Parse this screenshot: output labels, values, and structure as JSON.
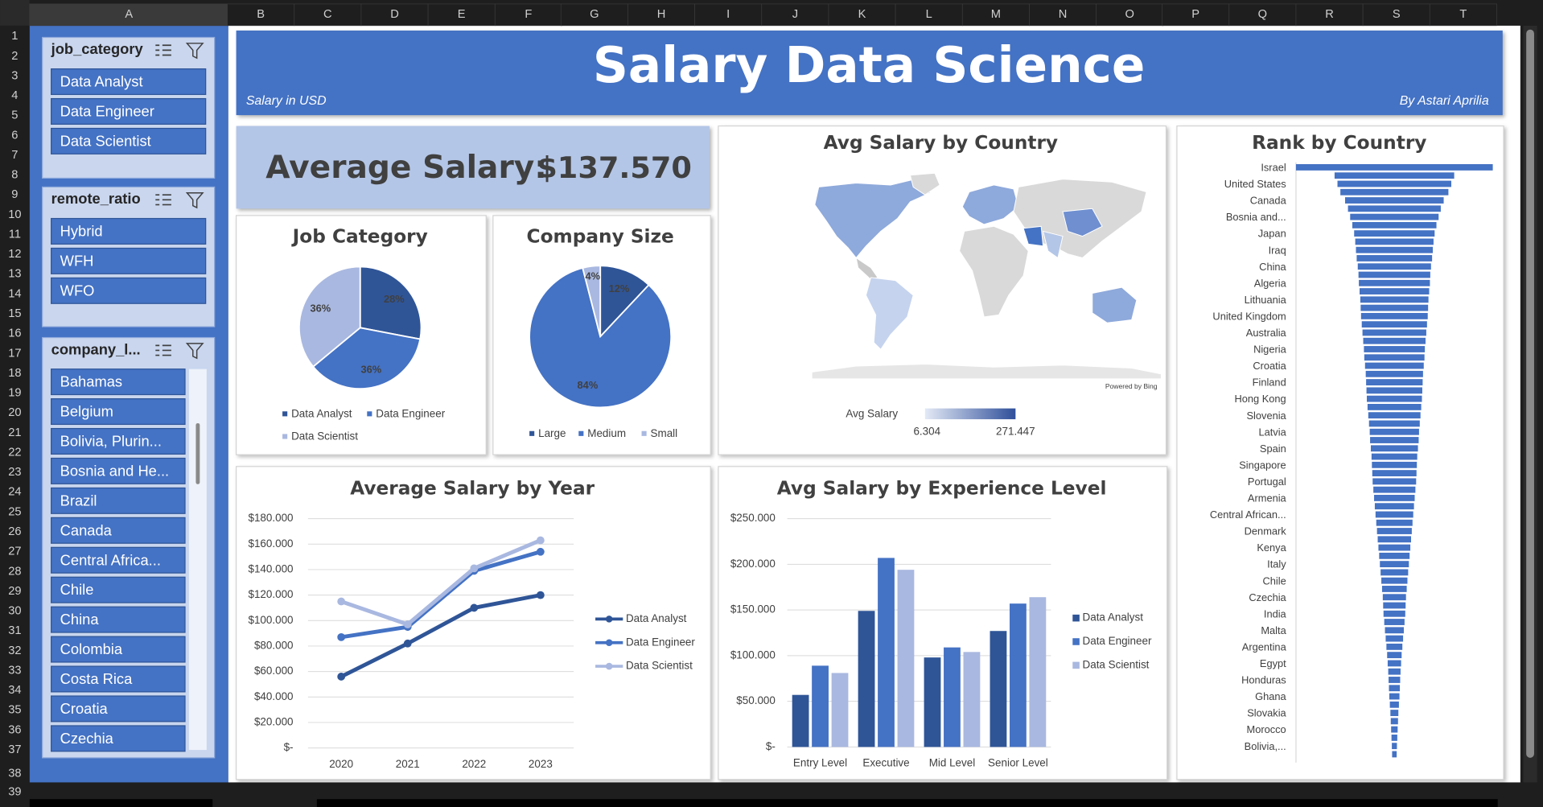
{
  "spreadsheet": {
    "columns": [
      "A",
      "B",
      "C",
      "D",
      "E",
      "F",
      "G",
      "H",
      "I",
      "J",
      "K",
      "L",
      "M",
      "N",
      "O",
      "P",
      "Q",
      "R",
      "S",
      "T"
    ],
    "rows": [
      1,
      2,
      3,
      4,
      5,
      6,
      7,
      8,
      9,
      10,
      11,
      12,
      13,
      14,
      15,
      16,
      17,
      18,
      19,
      20,
      21,
      22,
      23,
      24,
      25,
      26,
      27,
      28,
      29,
      30,
      31,
      32,
      33,
      34,
      35,
      36,
      37,
      38,
      39
    ]
  },
  "header": {
    "title": "Salary Data Science",
    "subtitle": "Salary in USD",
    "author": "By Astari Aprilia"
  },
  "kpi": {
    "label": "Average Salary:",
    "value": "$137.570"
  },
  "slicers": [
    {
      "title": "job_category",
      "items": [
        "Data Analyst",
        "Data Engineer",
        "Data Scientist"
      ]
    },
    {
      "title": "remote_ratio",
      "items": [
        "Hybrid",
        "WFH",
        "WFO"
      ]
    },
    {
      "title": "company_l...",
      "items": [
        "Bahamas",
        "Belgium",
        "Bolivia, Plurin...",
        "Bosnia and He...",
        "Brazil",
        "Canada",
        "Central Africa...",
        "Chile",
        "China",
        "Colombia",
        "Costa Rica",
        "Croatia",
        "Czechia"
      ]
    }
  ],
  "chart_data": [
    {
      "type": "pie",
      "title": "Job Category",
      "categories": [
        "Data Analyst",
        "Data Engineer",
        "Data Scientist"
      ],
      "values": [
        28,
        36,
        36
      ],
      "value_labels": [
        "28%",
        "36%",
        "36%"
      ],
      "colors": [
        "#2f5597",
        "#4472c4",
        "#a9b8e0"
      ]
    },
    {
      "type": "pie",
      "title": "Company Size",
      "categories": [
        "Large",
        "Medium",
        "Small"
      ],
      "values": [
        12,
        84,
        4
      ],
      "value_labels": [
        "12%",
        "84%",
        "4%"
      ],
      "colors": [
        "#2f5597",
        "#4472c4",
        "#a9b8e0"
      ]
    },
    {
      "type": "map",
      "title": "Avg Salary by Country",
      "legend_title": "Avg Salary",
      "color_min": {
        "value": 6304,
        "label": "6.304"
      },
      "color_max": {
        "value": 271447,
        "label": "271.447"
      },
      "colors": [
        "#e3e9f6",
        "#2f4f9a"
      ],
      "credit": "Powered by Bing"
    },
    {
      "type": "line",
      "title": "Average Salary by Year",
      "categories": [
        "2020",
        "2021",
        "2022",
        "2023"
      ],
      "series": [
        {
          "name": "Data Analyst",
          "color": "#2f5597",
          "values": [
            56000,
            82000,
            110000,
            120000
          ]
        },
        {
          "name": "Data Engineer",
          "color": "#4472c4",
          "values": [
            87000,
            95000,
            139000,
            154000
          ]
        },
        {
          "name": "Data Scientist",
          "color": "#a9b8e0",
          "values": [
            115000,
            97000,
            141000,
            163000
          ]
        }
      ],
      "ylim": [
        0,
        180000
      ],
      "yticks": [
        {
          "value": 0,
          "label": "$-"
        },
        {
          "value": 20000,
          "label": "$20.000"
        },
        {
          "value": 40000,
          "label": "$40.000"
        },
        {
          "value": 60000,
          "label": "$60.000"
        },
        {
          "value": 80000,
          "label": "$80.000"
        },
        {
          "value": 100000,
          "label": "$100.000"
        },
        {
          "value": 120000,
          "label": "$120.000"
        },
        {
          "value": 140000,
          "label": "$140.000"
        },
        {
          "value": 160000,
          "label": "$160.000"
        },
        {
          "value": 180000,
          "label": "$180.000"
        }
      ],
      "grid": true,
      "legend": "right"
    },
    {
      "type": "bar",
      "title": "Avg Salary by Experience Level",
      "categories": [
        "Entry Level",
        "Executive",
        "Mid Level",
        "Senior Level"
      ],
      "series": [
        {
          "name": "Data Analyst",
          "color": "#2f5597",
          "values": [
            57000,
            149000,
            98000,
            127000
          ]
        },
        {
          "name": "Data Engineer",
          "color": "#4472c4",
          "values": [
            89000,
            207000,
            109000,
            157000
          ]
        },
        {
          "name": "Data Scientist",
          "color": "#a9b8e0",
          "values": [
            81000,
            194000,
            104000,
            164000
          ]
        }
      ],
      "ylim": [
        0,
        250000
      ],
      "yticks": [
        {
          "value": 0,
          "label": "$-"
        },
        {
          "value": 50000,
          "label": "$50.000"
        },
        {
          "value": 100000,
          "label": "$100.000"
        },
        {
          "value": 150000,
          "label": "$150.000"
        },
        {
          "value": 200000,
          "label": "$200.000"
        },
        {
          "value": 250000,
          "label": "$250.000"
        }
      ],
      "grid": true,
      "legend": "right"
    },
    {
      "type": "funnel",
      "title": "Rank by Country",
      "color": "#4472c4",
      "categories": [
        "Israel",
        null,
        "United States",
        null,
        "Canada",
        null,
        "Bosnia and...",
        null,
        "Japan",
        null,
        "Iraq",
        null,
        "China",
        null,
        "Algeria",
        null,
        "Lithuania",
        null,
        "United Kingdom",
        null,
        "Australia",
        null,
        "Nigeria",
        null,
        "Croatia",
        null,
        "Finland",
        null,
        "Hong Kong",
        null,
        "Slovenia",
        null,
        "Latvia",
        null,
        "Spain",
        null,
        "Singapore",
        null,
        "Portugal",
        null,
        "Armenia",
        null,
        "Central African...",
        null,
        "Denmark",
        null,
        "Kenya",
        null,
        "Italy",
        null,
        "Chile",
        null,
        "Czechia",
        null,
        "India",
        null,
        "Malta",
        null,
        "Argentina",
        null,
        "Egypt",
        null,
        "Honduras",
        null,
        "Ghana",
        null,
        "Slovakia",
        null,
        "Morocco",
        null,
        "Bolivia,...",
        null
      ],
      "values": [
        271447,
        165000,
        157000,
        149000,
        136000,
        128000,
        122000,
        116000,
        111000,
        108000,
        106000,
        104000,
        101000,
        99000,
        98000,
        96000,
        94000,
        93000,
        92000,
        90000,
        88000,
        86000,
        84000,
        83000,
        81000,
        79000,
        78000,
        77000,
        76000,
        74000,
        72000,
        70000,
        68000,
        67000,
        65000,
        63000,
        62000,
        61000,
        60000,
        58000,
        56000,
        54000,
        52000,
        50000,
        48000,
        46000,
        44000,
        42000,
        40000,
        38000,
        36000,
        34000,
        32000,
        31000,
        30000,
        28000,
        26000,
        24000,
        22000,
        20000,
        18500,
        17000,
        16000,
        15000,
        14000,
        12500,
        11000,
        10000,
        9000,
        8000,
        7000,
        6304
      ]
    }
  ]
}
